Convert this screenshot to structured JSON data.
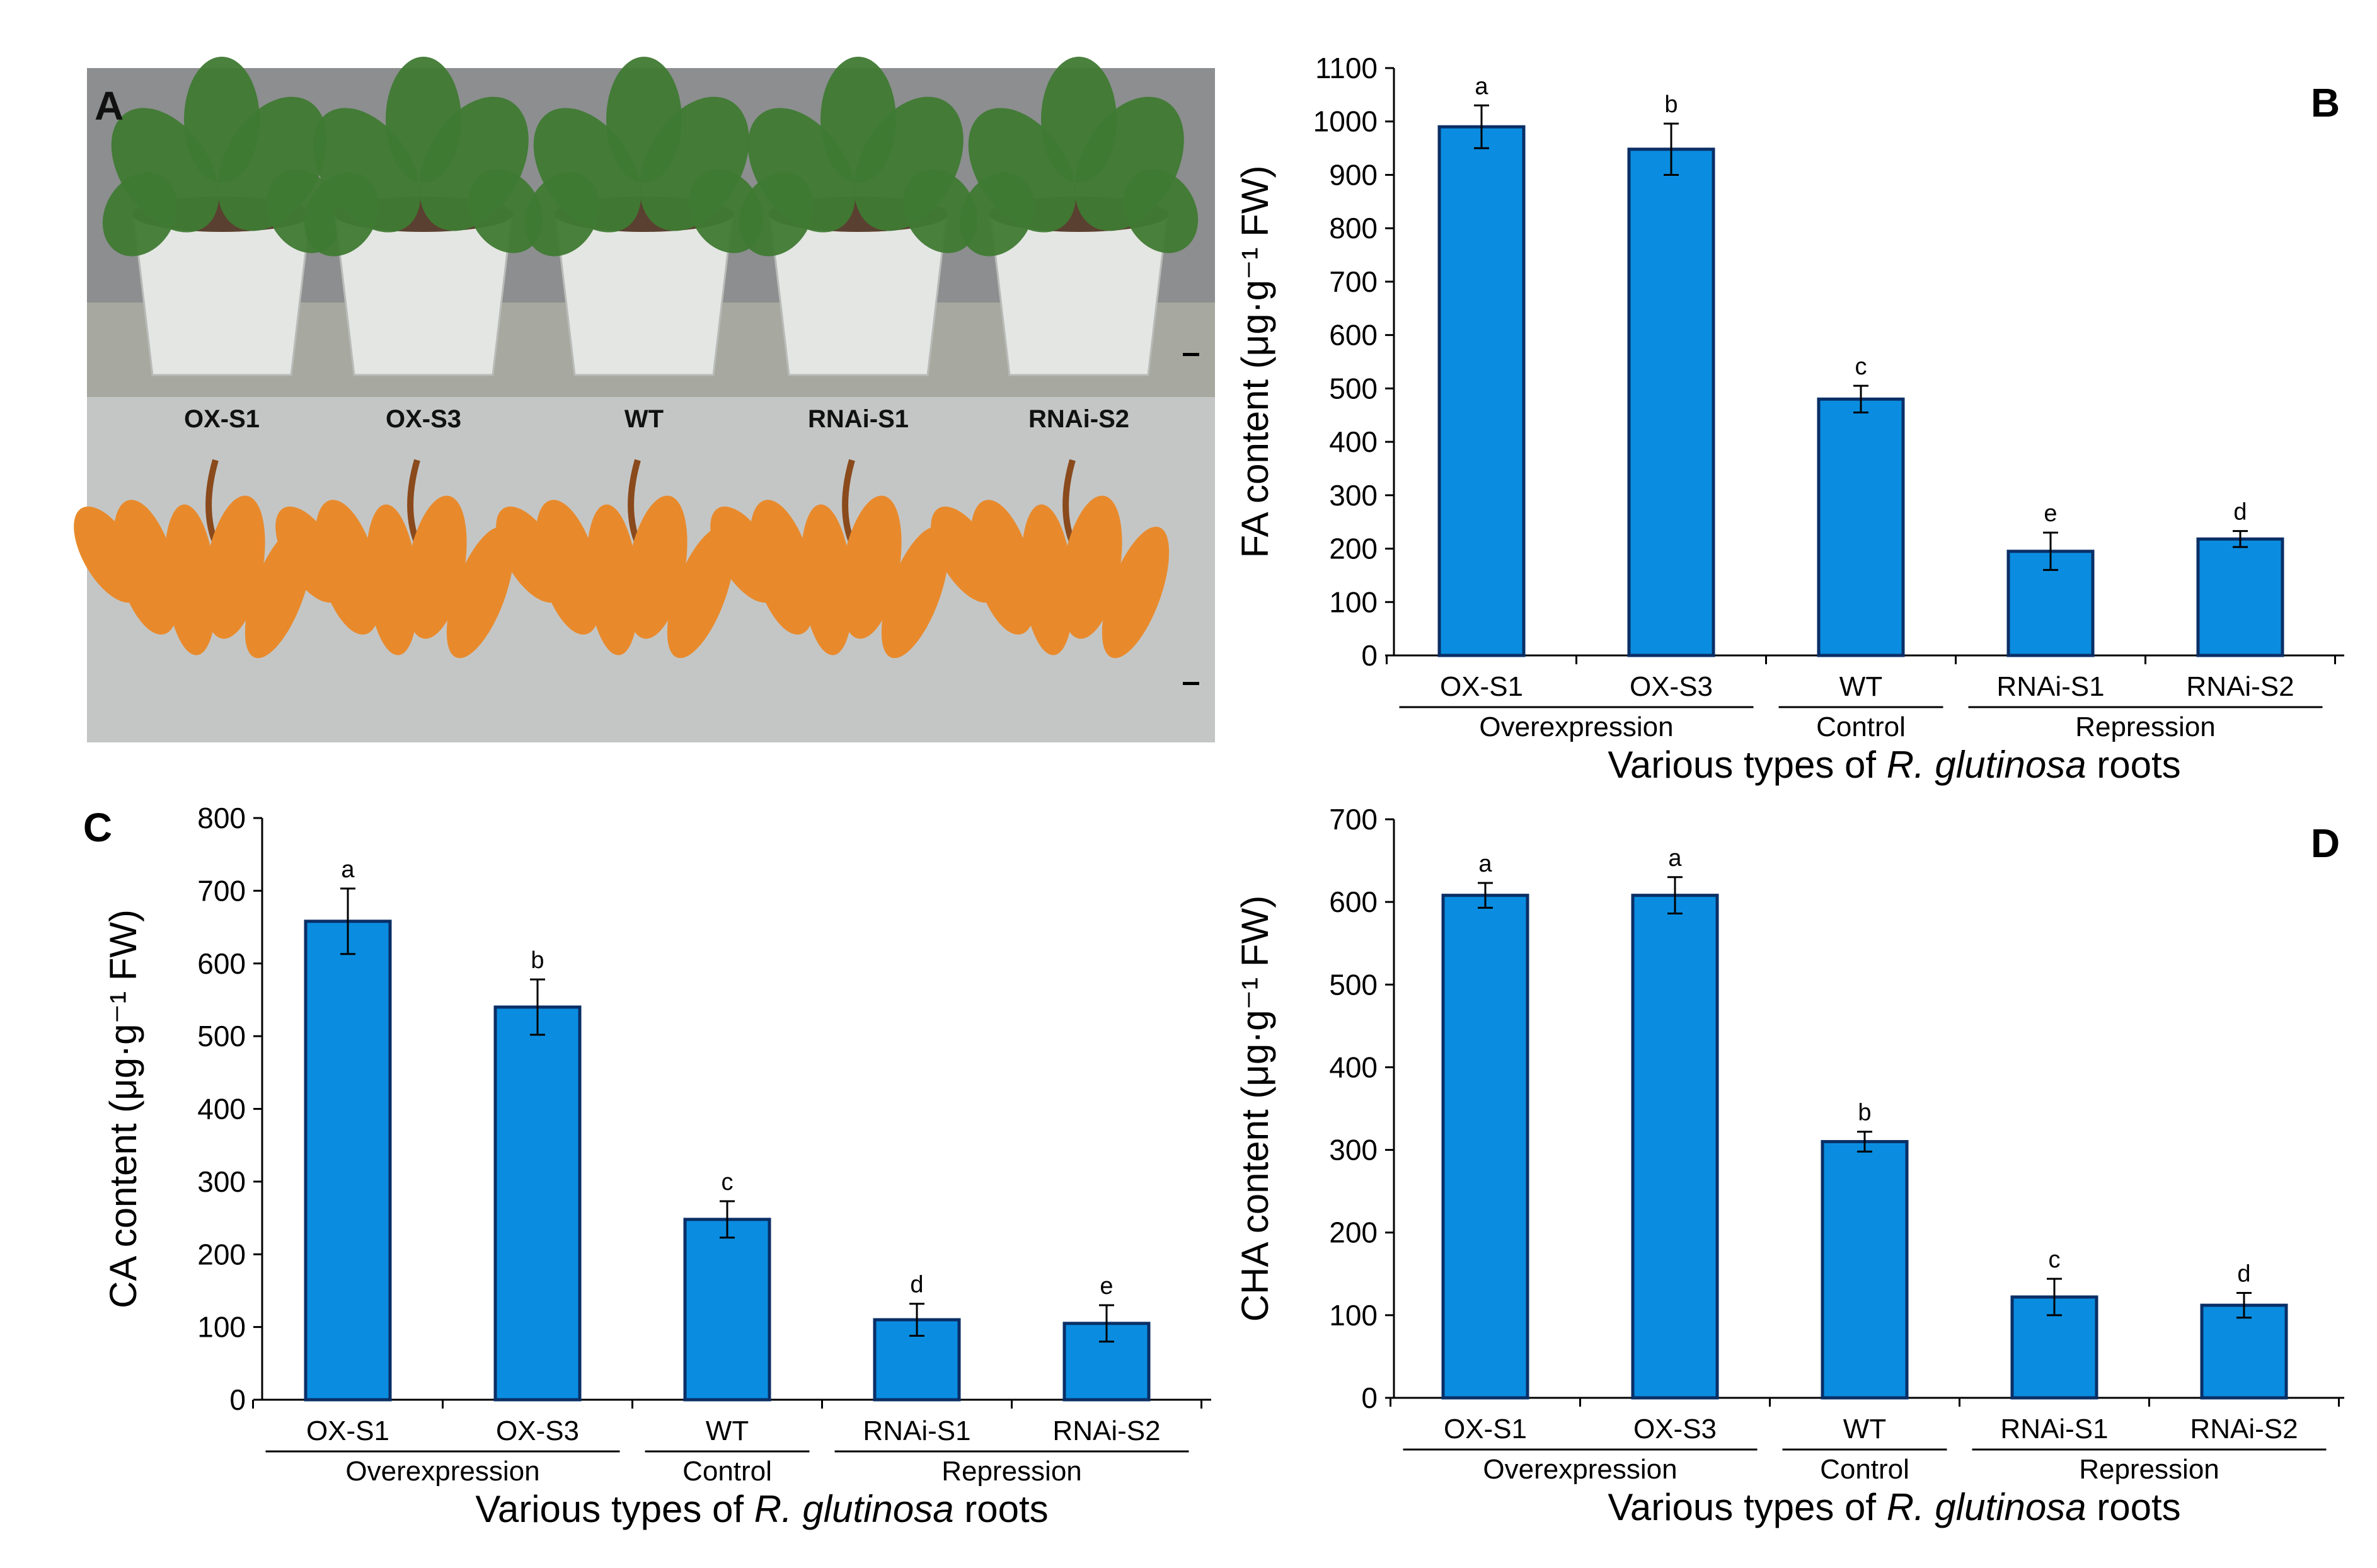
{
  "photo_panel": {
    "label": "A",
    "line_labels": [
      "OX-S1",
      "OX-S3",
      "WT",
      "RNAi-S1",
      "RNAi-S2"
    ],
    "colors": {
      "wall": "#8c8e8f",
      "floor": "#a7a89f",
      "paper": "#c4c6c6",
      "pot": "#e4e6e3",
      "leaf": "#3f7a33",
      "root": "#e88a2c"
    }
  },
  "colors": {
    "bar": "#0a8de0",
    "bar_edge": "#0a2f66",
    "axis": "#000000"
  },
  "chart_data": [
    {
      "panel": "B",
      "type": "bar",
      "ylabel": "FA content  (μg·g⁻¹ FW)",
      "xlabel": {
        "pre": "Various types of ",
        "italic": "R. glutinosa",
        "post": " roots"
      },
      "categories": [
        "OX-S1",
        "OX-S3",
        "WT",
        "RNAi-S1",
        "RNAi-S2"
      ],
      "values": [
        990,
        948,
        480,
        195,
        218
      ],
      "errors": [
        40,
        48,
        25,
        35,
        15
      ],
      "letters": [
        "a",
        "b",
        "c",
        "e",
        "d"
      ],
      "groups": [
        {
          "label": "Overexpression",
          "from": 0,
          "to": 1
        },
        {
          "label": "Control",
          "from": 2,
          "to": 2
        },
        {
          "label": "Repression",
          "from": 3,
          "to": 4
        }
      ],
      "ylim": [
        0,
        1100
      ],
      "ticks": [
        0,
        100,
        200,
        300,
        400,
        500,
        600,
        700,
        800,
        900,
        1000,
        1100
      ]
    },
    {
      "panel": "C",
      "type": "bar",
      "ylabel": "CA content  (μg·g⁻¹ FW)",
      "xlabel": {
        "pre": "Various types of ",
        "italic": "R. glutinosa",
        "post": " roots"
      },
      "categories": [
        "OX-S1",
        "OX-S3",
        "WT",
        "RNAi-S1",
        "RNAi-S2"
      ],
      "values": [
        658,
        540,
        248,
        110,
        105
      ],
      "errors": [
        45,
        38,
        25,
        22,
        25
      ],
      "letters": [
        "a",
        "b",
        "c",
        "d",
        "e"
      ],
      "groups": [
        {
          "label": "Overexpression",
          "from": 0,
          "to": 1
        },
        {
          "label": "Control",
          "from": 2,
          "to": 2
        },
        {
          "label": "Repression",
          "from": 3,
          "to": 4
        }
      ],
      "ylim": [
        0,
        800
      ],
      "ticks": [
        0,
        100,
        200,
        300,
        400,
        500,
        600,
        700,
        800
      ]
    },
    {
      "panel": "D",
      "type": "bar",
      "ylabel": "CHA content  (μg·g⁻¹ FW)",
      "xlabel": {
        "pre": "Various types of ",
        "italic": "R. glutinosa",
        "post": " roots"
      },
      "categories": [
        "OX-S1",
        "OX-S3",
        "WT",
        "RNAi-S1",
        "RNAi-S2"
      ],
      "values": [
        608,
        608,
        310,
        122,
        112
      ],
      "errors": [
        15,
        22,
        12,
        22,
        15
      ],
      "letters": [
        "a",
        "a",
        "b",
        "c",
        "d"
      ],
      "groups": [
        {
          "label": "Overexpression",
          "from": 0,
          "to": 1
        },
        {
          "label": "Control",
          "from": 2,
          "to": 2
        },
        {
          "label": "Repression",
          "from": 3,
          "to": 4
        }
      ],
      "ylim": [
        0,
        700
      ],
      "ticks": [
        0,
        100,
        200,
        300,
        400,
        500,
        600,
        700
      ]
    }
  ]
}
